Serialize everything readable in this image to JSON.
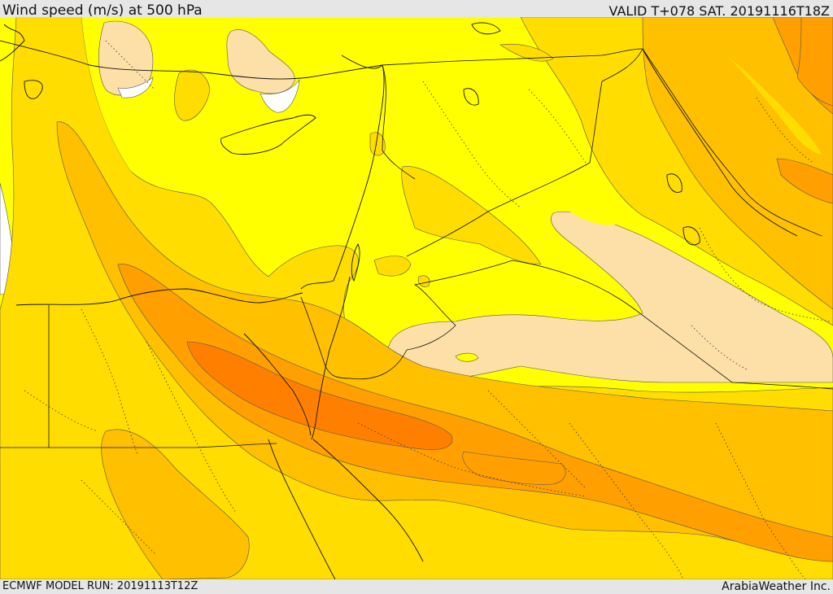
{
  "header": {
    "title": "Wind speed (m/s) at 500 hPa",
    "valid": "VALID T+078 SAT. 20191116T18Z"
  },
  "footer": {
    "model_run": "ECMWF MODEL RUN: 20191113T12Z",
    "credit": "ArabiaWeather Inc."
  },
  "colors": {
    "white": "#ffffff",
    "light_peach": "#fde0a8",
    "yellow": "#ffff00",
    "gold": "#ffdd00",
    "light_orange": "#ffc000",
    "orange": "#ffa000",
    "dark_orange": "#ff8000"
  }
}
